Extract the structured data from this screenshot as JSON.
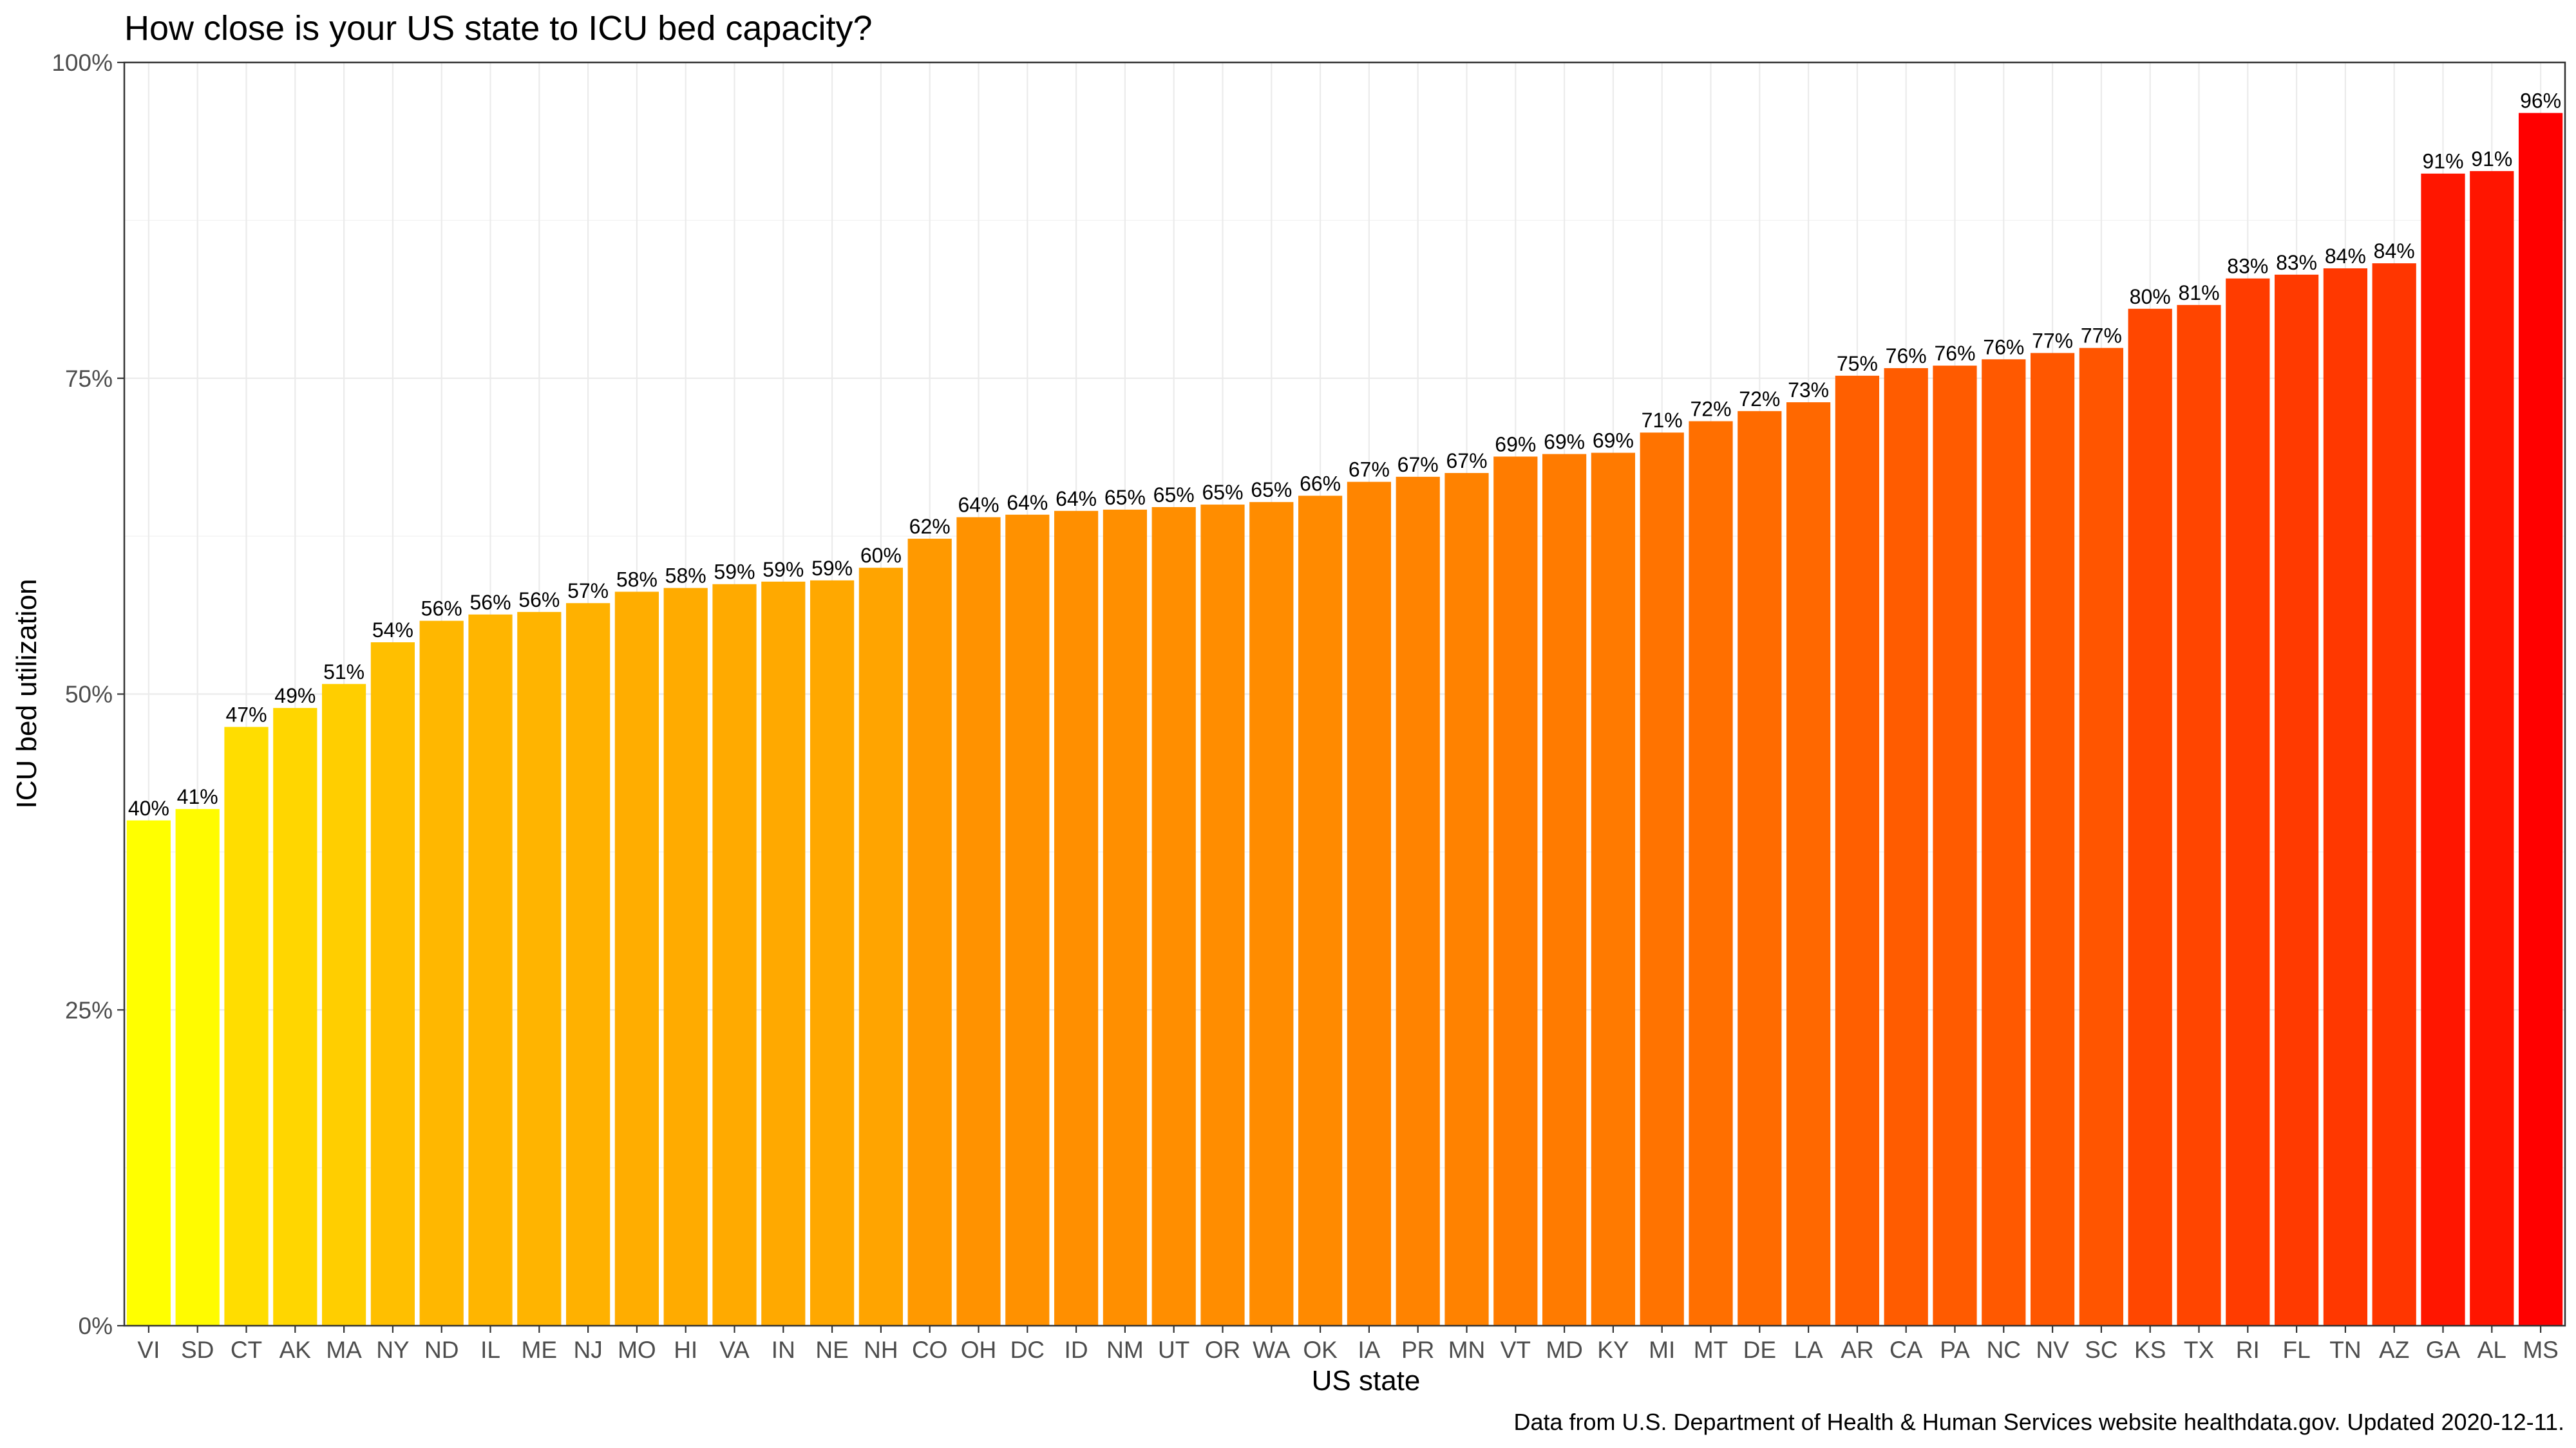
{
  "chart_data": {
    "type": "bar",
    "title": "How close is your US state to ICU bed capacity?",
    "xlabel": "US state",
    "ylabel": "ICU bed utilization",
    "caption": "Data from U.S. Department of Health & Human Services website healthdata.gov. Updated 2020-12-11.",
    "ylim": [
      0,
      1
    ],
    "y_ticks": [
      {
        "value": 0,
        "label": "0%"
      },
      {
        "value": 0.25,
        "label": "25%"
      },
      {
        "value": 0.5,
        "label": "50%"
      },
      {
        "value": 0.75,
        "label": "75%"
      },
      {
        "value": 1.0,
        "label": "100%"
      }
    ],
    "grid": true,
    "legend": "none",
    "color_scale": {
      "low": "#FFFF00",
      "high": "#FF0000"
    },
    "categories": [
      "VI",
      "SD",
      "CT",
      "AK",
      "MA",
      "NY",
      "ND",
      "IL",
      "ME",
      "NJ",
      "MO",
      "HI",
      "VA",
      "IN",
      "NE",
      "NH",
      "CO",
      "OH",
      "DC",
      "ID",
      "NM",
      "UT",
      "OR",
      "WA",
      "OK",
      "IA",
      "PR",
      "MN",
      "VT",
      "MD",
      "KY",
      "MI",
      "MT",
      "DE",
      "LA",
      "AR",
      "CA",
      "PA",
      "NC",
      "NV",
      "SC",
      "KS",
      "TX",
      "RI",
      "FL",
      "TN",
      "AZ",
      "GA",
      "AL",
      "MS"
    ],
    "values": [
      0.4,
      0.409,
      0.474,
      0.489,
      0.508,
      0.541,
      0.558,
      0.563,
      0.565,
      0.572,
      0.581,
      0.584,
      0.587,
      0.589,
      0.59,
      0.6,
      0.623,
      0.64,
      0.642,
      0.645,
      0.646,
      0.648,
      0.65,
      0.652,
      0.657,
      0.668,
      0.672,
      0.675,
      0.688,
      0.69,
      0.691,
      0.707,
      0.716,
      0.724,
      0.731,
      0.752,
      0.758,
      0.76,
      0.765,
      0.77,
      0.774,
      0.805,
      0.808,
      0.829,
      0.832,
      0.837,
      0.841,
      0.912,
      0.914,
      0.96
    ],
    "data_labels": [
      "40%",
      "41%",
      "47%",
      "49%",
      "51%",
      "54%",
      "56%",
      "56%",
      "56%",
      "57%",
      "58%",
      "58%",
      "59%",
      "59%",
      "59%",
      "60%",
      "62%",
      "64%",
      "64%",
      "64%",
      "65%",
      "65%",
      "65%",
      "65%",
      "66%",
      "67%",
      "67%",
      "67%",
      "69%",
      "69%",
      "69%",
      "71%",
      "72%",
      "72%",
      "73%",
      "75%",
      "76%",
      "76%",
      "76%",
      "77%",
      "77%",
      "80%",
      "81%",
      "83%",
      "83%",
      "84%",
      "84%",
      "91%",
      "91%",
      "96%"
    ]
  }
}
